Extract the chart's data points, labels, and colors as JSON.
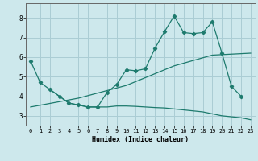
{
  "xlabel": "Humidex (Indice chaleur)",
  "xlim": [
    -0.5,
    23.5
  ],
  "ylim": [
    2.5,
    8.75
  ],
  "xticks": [
    0,
    1,
    2,
    3,
    4,
    5,
    6,
    7,
    8,
    9,
    10,
    11,
    12,
    13,
    14,
    15,
    16,
    17,
    18,
    19,
    20,
    21,
    22,
    23
  ],
  "yticks": [
    3,
    4,
    5,
    6,
    7,
    8
  ],
  "bg_color": "#cde8ec",
  "grid_color": "#aacdd4",
  "line_color": "#1e7b6e",
  "line1_x": [
    0,
    1,
    2,
    3,
    4,
    5,
    6,
    7,
    8,
    9,
    10,
    11,
    12,
    13,
    14,
    15,
    16,
    17,
    18,
    19,
    20,
    21,
    22
  ],
  "line1_y": [
    5.8,
    4.7,
    4.35,
    4.0,
    3.65,
    3.55,
    3.45,
    3.45,
    4.2,
    4.6,
    5.35,
    5.3,
    5.4,
    6.45,
    7.3,
    8.1,
    7.25,
    7.2,
    7.25,
    7.8,
    6.2,
    4.5,
    4.0
  ],
  "line2_x": [
    0,
    5,
    10,
    15,
    19,
    23
  ],
  "line2_y": [
    3.45,
    3.9,
    4.55,
    5.55,
    6.1,
    6.2
  ],
  "line3_x": [
    2,
    3,
    4,
    5,
    6,
    7,
    8,
    9,
    10,
    11,
    12,
    13,
    14,
    15,
    16,
    17,
    18,
    19,
    20,
    21,
    22,
    23
  ],
  "line3_y": [
    4.35,
    4.0,
    3.65,
    3.55,
    3.45,
    3.45,
    3.45,
    3.5,
    3.5,
    3.48,
    3.45,
    3.42,
    3.4,
    3.35,
    3.3,
    3.25,
    3.2,
    3.1,
    3.0,
    2.95,
    2.9,
    2.8
  ]
}
